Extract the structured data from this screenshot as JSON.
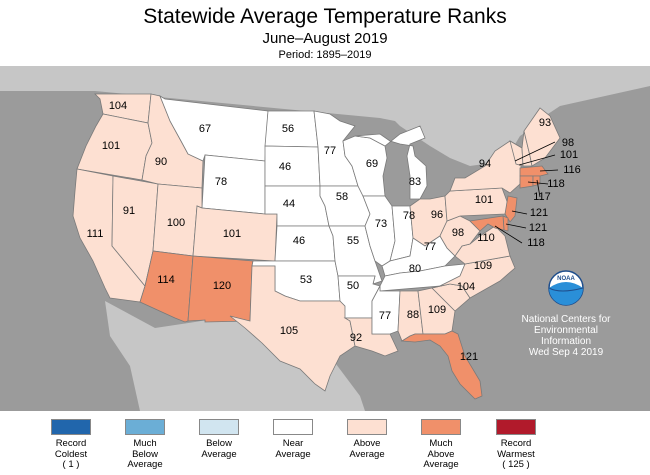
{
  "header": {
    "title": "Statewide Average Temperature Ranks",
    "subtitle": "June–August 2019",
    "period": "Period: 1895–2019"
  },
  "colors": {
    "ocean": "#9b9b9b",
    "near": "#ffffff",
    "above": "#fde0d2",
    "much_above": "#f0906a",
    "record_warmest": "#b11a2b",
    "below": "#d1e5f0",
    "much_below": "#6baed6",
    "record_coldest": "#2166ac"
  },
  "noaa": {
    "logo_text": "NOAA",
    "lines": [
      "National Centers for",
      "Environmental",
      "Information",
      "Wed Sep  4 2019"
    ]
  },
  "map_data": {
    "states": [
      {
        "abbr": "WA",
        "rank": 104,
        "category": "above"
      },
      {
        "abbr": "OR",
        "rank": 101,
        "category": "above"
      },
      {
        "abbr": "CA",
        "rank": 111,
        "category": "above"
      },
      {
        "abbr": "NV",
        "rank": 91,
        "category": "above"
      },
      {
        "abbr": "ID",
        "rank": 90,
        "category": "above"
      },
      {
        "abbr": "MT",
        "rank": 67,
        "category": "near"
      },
      {
        "abbr": "WY",
        "rank": 78,
        "category": "near"
      },
      {
        "abbr": "UT",
        "rank": 100,
        "category": "above"
      },
      {
        "abbr": "AZ",
        "rank": 114,
        "category": "much_above"
      },
      {
        "abbr": "CO",
        "rank": 101,
        "category": "above"
      },
      {
        "abbr": "NM",
        "rank": 120,
        "category": "much_above"
      },
      {
        "abbr": "ND",
        "rank": 56,
        "category": "near"
      },
      {
        "abbr": "SD",
        "rank": 46,
        "category": "near"
      },
      {
        "abbr": "NE",
        "rank": 44,
        "category": "near"
      },
      {
        "abbr": "KS",
        "rank": 46,
        "category": "near"
      },
      {
        "abbr": "OK",
        "rank": 53,
        "category": "near"
      },
      {
        "abbr": "TX",
        "rank": 105,
        "category": "above"
      },
      {
        "abbr": "MN",
        "rank": 77,
        "category": "near"
      },
      {
        "abbr": "IA",
        "rank": 58,
        "category": "near"
      },
      {
        "abbr": "MO",
        "rank": 55,
        "category": "near"
      },
      {
        "abbr": "AR",
        "rank": 50,
        "category": "near"
      },
      {
        "abbr": "LA",
        "rank": 92,
        "category": "above"
      },
      {
        "abbr": "WI",
        "rank": 69,
        "category": "near"
      },
      {
        "abbr": "IL",
        "rank": 73,
        "category": "near"
      },
      {
        "abbr": "MI",
        "rank": 83,
        "category": "near"
      },
      {
        "abbr": "IN",
        "rank": 78,
        "category": "near"
      },
      {
        "abbr": "OH",
        "rank": 96,
        "category": "above"
      },
      {
        "abbr": "KY",
        "rank": 77,
        "category": "near"
      },
      {
        "abbr": "TN",
        "rank": 80,
        "category": "near"
      },
      {
        "abbr": "MS",
        "rank": 77,
        "category": "near"
      },
      {
        "abbr": "AL",
        "rank": 88,
        "category": "above"
      },
      {
        "abbr": "GA",
        "rank": 109,
        "category": "above"
      },
      {
        "abbr": "FL",
        "rank": 121,
        "category": "much_above"
      },
      {
        "abbr": "SC",
        "rank": 104,
        "category": "above"
      },
      {
        "abbr": "NC",
        "rank": 109,
        "category": "above"
      },
      {
        "abbr": "VA",
        "rank": 110,
        "category": "above"
      },
      {
        "abbr": "WV",
        "rank": 98,
        "category": "above"
      },
      {
        "abbr": "PA",
        "rank": 101,
        "category": "above"
      },
      {
        "abbr": "NY",
        "rank": 94,
        "category": "above"
      },
      {
        "abbr": "ME",
        "rank": 93,
        "category": "above"
      },
      {
        "abbr": "NH",
        "rank": 98,
        "category": "above"
      },
      {
        "abbr": "VT",
        "rank": 101,
        "category": "above"
      },
      {
        "abbr": "MA",
        "rank": 116,
        "category": "much_above"
      },
      {
        "abbr": "CT",
        "rank": 118,
        "category": "much_above"
      },
      {
        "abbr": "RI",
        "rank": 117,
        "category": "much_above"
      },
      {
        "abbr": "NJ",
        "rank": 121,
        "category": "much_above"
      },
      {
        "abbr": "DE",
        "rank": 121,
        "category": "much_above"
      },
      {
        "abbr": "MD",
        "rank": 118,
        "category": "much_above"
      }
    ]
  },
  "legend": [
    {
      "label": "Record\nColdest\n( 1 )",
      "color": "#2166ac"
    },
    {
      "label": "Much\nBelow\nAverage",
      "color": "#6baed6"
    },
    {
      "label": "Below\nAverage",
      "color": "#d1e5f0"
    },
    {
      "label": "Near\nAverage",
      "color": "#ffffff"
    },
    {
      "label": "Above\nAverage",
      "color": "#fde0d2"
    },
    {
      "label": "Much\nAbove\nAverage",
      "color": "#f0906a"
    },
    {
      "label": "Record\nWarmest\n( 125 )",
      "color": "#b11a2b"
    }
  ]
}
